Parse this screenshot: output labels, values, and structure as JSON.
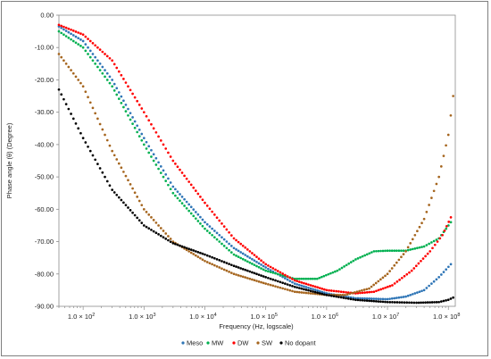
{
  "chart_data": {
    "type": "scatter",
    "xlabel": "Frequency (Hz, logscale)",
    "ylabel": "Phase angle (θ) (Degree)",
    "x_scale": "log",
    "xlim": [
      40,
      130000000
    ],
    "ylim": [
      -90,
      0
    ],
    "grid": false,
    "legend_position": "bottom",
    "y_ticks": [
      "0.00",
      "-10.00",
      "-20.00",
      "-30.00",
      "-40.00",
      "-50.00",
      "-60.00",
      "-70.00",
      "-80.00",
      "-90.00"
    ],
    "x_ticks": [
      {
        "mantissa": "1.0 × 10",
        "exp": "2",
        "value": 100
      },
      {
        "mantissa": "1.0 × 10",
        "exp": "3",
        "value": 1000
      },
      {
        "mantissa": "1.0 × 10",
        "exp": "4",
        "value": 10000
      },
      {
        "mantissa": "1.0 × 10",
        "exp": "5",
        "value": 100000
      },
      {
        "mantissa": "1.0 × 10",
        "exp": "6",
        "value": 1000000
      },
      {
        "mantissa": "1.0 × 10",
        "exp": "7",
        "value": 10000000
      },
      {
        "mantissa": "1.0 × 10",
        "exp": "8",
        "value": 100000000
      }
    ],
    "series": [
      {
        "name": "Meso",
        "color": "#2e75b6",
        "points": [
          [
            40,
            -3.5
          ],
          [
            100,
            -8
          ],
          [
            300,
            -20
          ],
          [
            1000,
            -38
          ],
          [
            3000,
            -53
          ],
          [
            10000,
            -64
          ],
          [
            30000,
            -72
          ],
          [
            100000,
            -78
          ],
          [
            300000,
            -83
          ],
          [
            1000000,
            -86
          ],
          [
            3000000,
            -87.5
          ],
          [
            10000000,
            -87.8
          ],
          [
            20000000,
            -87
          ],
          [
            40000000,
            -85
          ],
          [
            70000000,
            -81
          ],
          [
            110000000,
            -77
          ]
        ]
      },
      {
        "name": "MW",
        "color": "#00b050",
        "points": [
          [
            40,
            -5
          ],
          [
            100,
            -10
          ],
          [
            300,
            -22
          ],
          [
            1000,
            -40
          ],
          [
            3000,
            -55
          ],
          [
            10000,
            -66
          ],
          [
            30000,
            -74
          ],
          [
            100000,
            -79
          ],
          [
            300000,
            -81.5
          ],
          [
            700000,
            -81.5
          ],
          [
            1500000,
            -79
          ],
          [
            3000000,
            -75.5
          ],
          [
            6000000,
            -73
          ],
          [
            10000000,
            -72.8
          ],
          [
            20000000,
            -72.8
          ],
          [
            40000000,
            -71.5
          ],
          [
            70000000,
            -69
          ],
          [
            110000000,
            -64
          ]
        ]
      },
      {
        "name": "DW",
        "color": "#ff0000",
        "points": [
          [
            40,
            -3
          ],
          [
            100,
            -6
          ],
          [
            300,
            -14
          ],
          [
            1000,
            -30
          ],
          [
            3000,
            -45
          ],
          [
            10000,
            -58
          ],
          [
            30000,
            -69
          ],
          [
            100000,
            -77
          ],
          [
            300000,
            -82
          ],
          [
            1000000,
            -85
          ],
          [
            3000000,
            -86
          ],
          [
            6000000,
            -85.5
          ],
          [
            12000000,
            -83.5
          ],
          [
            25000000,
            -79
          ],
          [
            50000000,
            -73
          ],
          [
            80000000,
            -68
          ],
          [
            110000000,
            -62.5
          ]
        ]
      },
      {
        "name": "SW",
        "color": "#a5651e",
        "points": [
          [
            40,
            -12
          ],
          [
            100,
            -22
          ],
          [
            300,
            -42
          ],
          [
            1000,
            -60
          ],
          [
            3000,
            -70
          ],
          [
            10000,
            -76
          ],
          [
            30000,
            -80
          ],
          [
            100000,
            -83
          ],
          [
            300000,
            -85.5
          ],
          [
            1000000,
            -86.5
          ],
          [
            2000000,
            -86.5
          ],
          [
            5000000,
            -84.5
          ],
          [
            10000000,
            -80
          ],
          [
            20000000,
            -73
          ],
          [
            40000000,
            -63
          ],
          [
            70000000,
            -50
          ],
          [
            100000000,
            -37
          ],
          [
            120000000,
            -25
          ]
        ]
      },
      {
        "name": "No dopant",
        "color": "#000000",
        "points": [
          [
            40,
            -23
          ],
          [
            100,
            -38
          ],
          [
            300,
            -54
          ],
          [
            1000,
            -65
          ],
          [
            3000,
            -70.5
          ],
          [
            10000,
            -74
          ],
          [
            30000,
            -77.5
          ],
          [
            100000,
            -81
          ],
          [
            300000,
            -84
          ],
          [
            1000000,
            -86.5
          ],
          [
            3000000,
            -88
          ],
          [
            10000000,
            -88.7
          ],
          [
            30000000,
            -88.9
          ],
          [
            70000000,
            -88.7
          ],
          [
            100000000,
            -88
          ],
          [
            120000000,
            -87.3
          ]
        ]
      }
    ]
  }
}
